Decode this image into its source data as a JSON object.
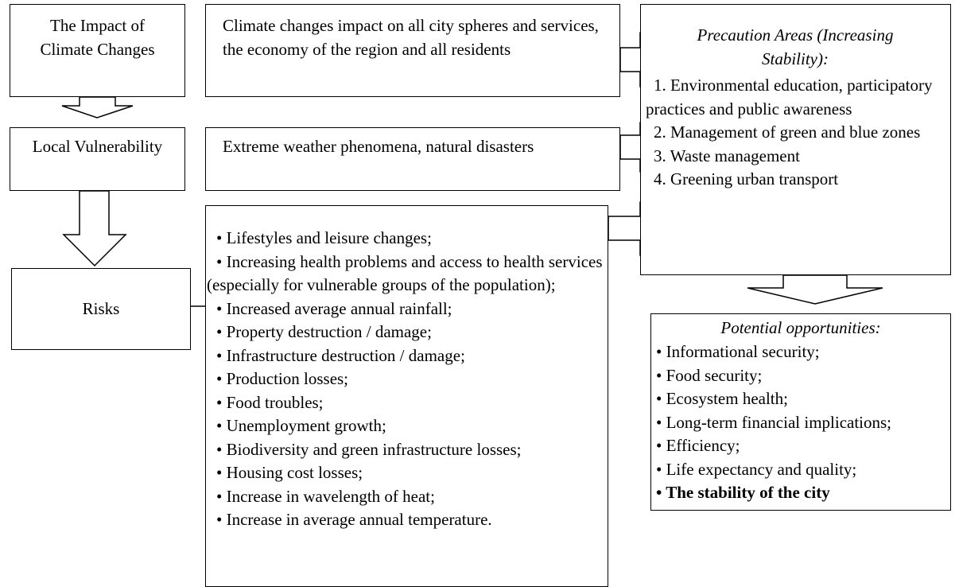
{
  "impact": {
    "label": "The Impact of Climate Changes",
    "description": "Climate changes impact on all city spheres and services, the economy of the region and all residents"
  },
  "vulnerability": {
    "label": "Local Vulnerability",
    "description": "Extreme weather phenomena, natural disasters"
  },
  "risks": {
    "label": "Risks",
    "items": [
      "• Lifestyles and leisure changes;",
      "• Increasing health problems and access to health services (especially for vulnerable groups of the population);",
      "• Increased average annual rainfall;",
      "• Property destruction / damage;",
      "• Infrastructure destruction / damage;",
      "• Production losses;",
      "• Food troubles;",
      "• Unemployment growth;",
      "• Biodiversity and green infrastructure losses;",
      "• Housing cost losses;",
      "• Increase in wavelength of heat;",
      "• Increase in average annual temperature."
    ]
  },
  "precaution": {
    "title": "Precaution Areas (Increasing Stability):",
    "items": [
      "1.  Environmental education, participatory practices and public awareness",
      "2.  Management of green and blue zones",
      "3.  Waste management",
      "4.  Greening urban transport"
    ]
  },
  "opportunities": {
    "title": "Potential opportunities:",
    "items": [
      "• Informational security;",
      "• Food security;",
      "• Ecosystem health;",
      "• Long-term financial implications;",
      "• Efficiency;",
      "• Life expectancy and quality;",
      "• The stability of the city"
    ]
  }
}
